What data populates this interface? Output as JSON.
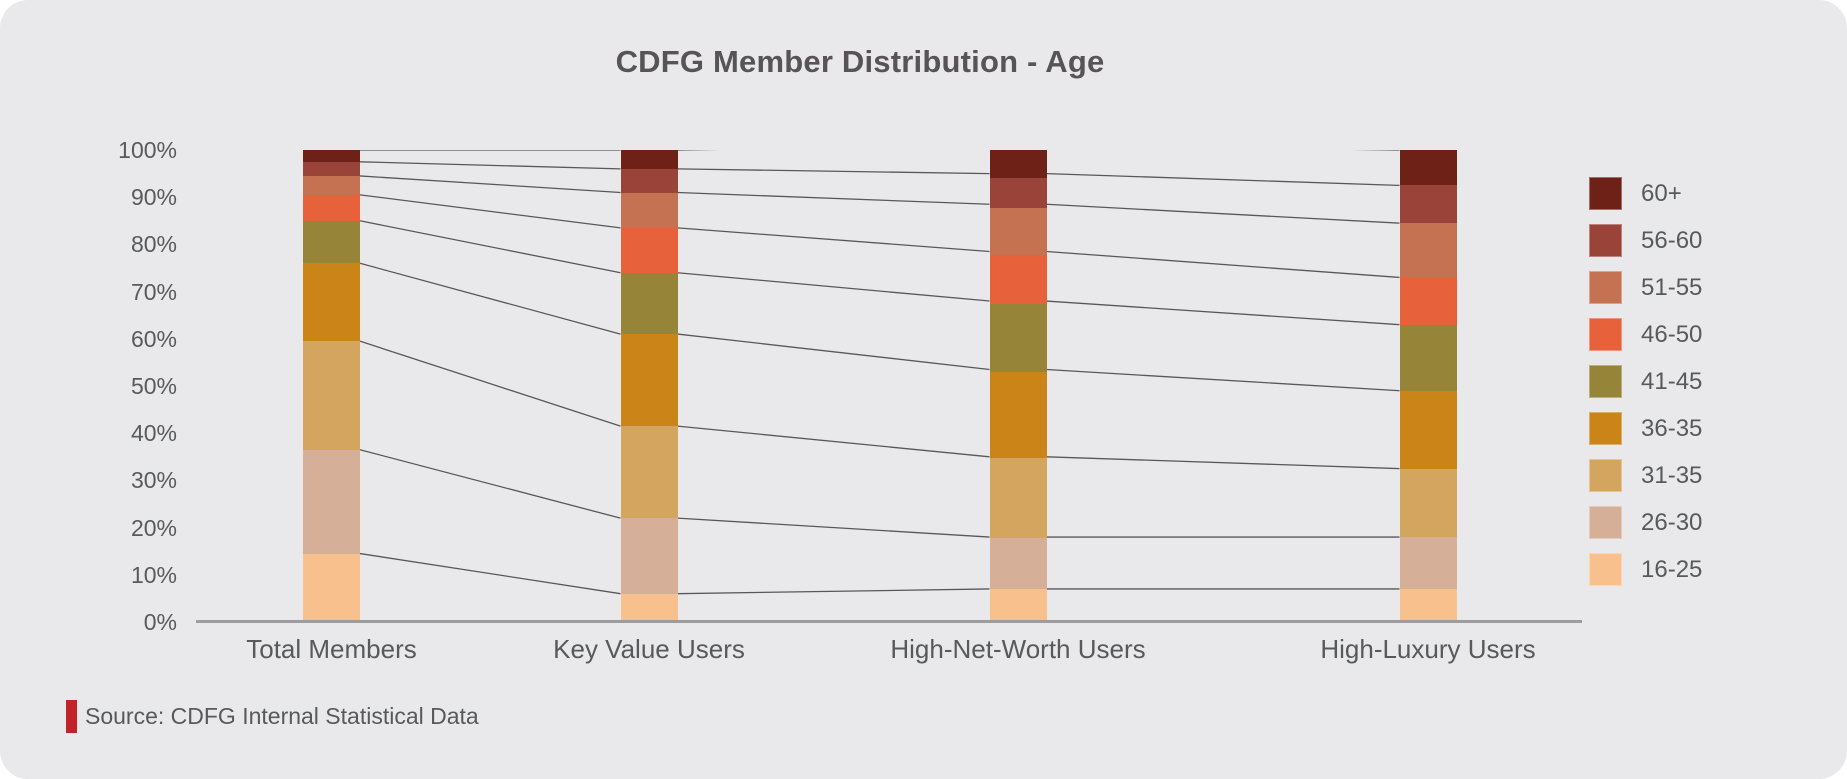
{
  "title": "CDFG Member Distribution - Age",
  "source": {
    "label": "Source: CDFG Internal Statistical Data"
  },
  "colors": {
    "background": "#E9E9EB",
    "text_gray": "#58595B",
    "series_line": "#58585A",
    "baseline": "#9D9D9F",
    "source_accent_red": "#C2232B"
  },
  "chart_data": {
    "type": "bar",
    "stacked": true,
    "units": "percent",
    "title": "CDFG Member Distribution - Age",
    "categories": [
      "Total Members",
      "Key Value Users",
      "High-Net-Worth Users",
      "High-Luxury Users"
    ],
    "series": [
      {
        "name": "16-25",
        "color": "#F8C08D",
        "values": [
          14.5,
          6,
          7,
          7
        ]
      },
      {
        "name": "26-30",
        "color": "#D6AF98",
        "values": [
          22,
          16,
          11,
          11
        ]
      },
      {
        "name": "31-35",
        "color": "#D3A55E",
        "values": [
          23,
          19.5,
          17,
          14.5
        ]
      },
      {
        "name": "36-35",
        "color": "#CA8418",
        "values": [
          16.5,
          19.5,
          18.5,
          16.5
        ]
      },
      {
        "name": "41-45",
        "color": "#968538",
        "values": [
          9,
          13,
          14.5,
          14
        ]
      },
      {
        "name": "46-50",
        "color": "#E7613A",
        "values": [
          5.5,
          9.5,
          10.5,
          10
        ]
      },
      {
        "name": "51-55",
        "color": "#C57253",
        "values": [
          4,
          7.5,
          10,
          11.5
        ]
      },
      {
        "name": "56-60",
        "color": "#9A4339",
        "values": [
          3,
          5,
          6.5,
          8
        ]
      },
      {
        "name": "60+",
        "color": "#6E2217",
        "values": [
          2.5,
          4,
          6,
          7.5
        ]
      }
    ],
    "y_ticks": [
      "0%",
      "10%",
      "20%",
      "30%",
      "40%",
      "50%",
      "60%",
      "70%",
      "80%",
      "90%",
      "100%"
    ],
    "ylim": [
      0,
      100
    ],
    "grid": false,
    "legend_position": "right",
    "legend_order_top_to_bottom": [
      "60+",
      "56-60",
      "51-55",
      "46-50",
      "41-45",
      "36-35",
      "31-35",
      "26-30",
      "16-25"
    ],
    "notes": "stacked percentage columns with series connector lines between bars"
  }
}
